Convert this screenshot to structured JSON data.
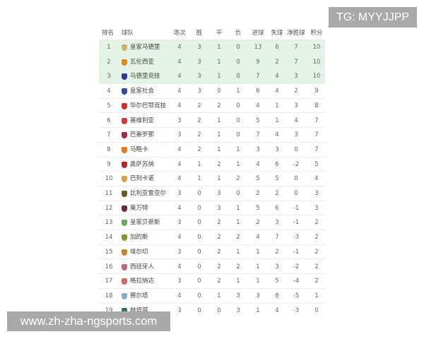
{
  "watermarks": {
    "top": "TG: MYYJJPP",
    "bottom": "www.zh-zha-ngsports.com"
  },
  "table": {
    "headers": [
      "排名",
      "球队",
      "场次",
      "胜",
      "平",
      "负",
      "进球",
      "失球",
      "净胜球",
      "积分"
    ],
    "highlight_color": "#e3f4e6",
    "rows": [
      {
        "rank": "1",
        "team": "皇家马德里",
        "played": "4",
        "w": "3",
        "d": "1",
        "l": "0",
        "gf": "13",
        "ga": "6",
        "gd": "7",
        "pts": "10",
        "logo_color": "#c9b56a"
      },
      {
        "rank": "2",
        "team": "瓦伦西亚",
        "played": "4",
        "w": "3",
        "d": "1",
        "l": "0",
        "gf": "9",
        "ga": "2",
        "gd": "7",
        "pts": "10",
        "logo_color": "#e08a1e"
      },
      {
        "rank": "3",
        "team": "马德里竞技",
        "played": "4",
        "w": "3",
        "d": "1",
        "l": "0",
        "gf": "7",
        "ga": "4",
        "gd": "3",
        "pts": "10",
        "logo_color": "#2b3a8c"
      },
      {
        "rank": "4",
        "team": "皇家社会",
        "played": "4",
        "w": "3",
        "d": "0",
        "l": "1",
        "gf": "6",
        "ga": "4",
        "gd": "2",
        "pts": "9",
        "logo_color": "#2d4f9c"
      },
      {
        "rank": "5",
        "team": "毕尔巴鄂竞技",
        "played": "4",
        "w": "2",
        "d": "2",
        "l": "0",
        "gf": "4",
        "ga": "1",
        "gd": "3",
        "pts": "8",
        "logo_color": "#c8322f"
      },
      {
        "rank": "6",
        "team": "塞维利亚",
        "played": "3",
        "w": "2",
        "d": "1",
        "l": "0",
        "gf": "5",
        "ga": "1",
        "gd": "4",
        "pts": "7",
        "logo_color": "#d33a3a"
      },
      {
        "rank": "7",
        "team": "巴塞罗那",
        "played": "3",
        "w": "2",
        "d": "1",
        "l": "0",
        "gf": "7",
        "ga": "4",
        "gd": "3",
        "pts": "7",
        "logo_color": "#a4283c"
      },
      {
        "rank": "8",
        "team": "马略卡",
        "played": "4",
        "w": "2",
        "d": "1",
        "l": "1",
        "gf": "3",
        "ga": "3",
        "gd": "0",
        "pts": "7",
        "logo_color": "#e07a1a"
      },
      {
        "rank": "9",
        "team": "奥萨苏纳",
        "played": "4",
        "w": "1",
        "d": "2",
        "l": "1",
        "gf": "4",
        "ga": "6",
        "gd": "-2",
        "pts": "5",
        "logo_color": "#b02a2a"
      },
      {
        "rank": "10",
        "team": "巴列卡诺",
        "played": "4",
        "w": "1",
        "d": "1",
        "l": "2",
        "gf": "5",
        "ga": "5",
        "gd": "0",
        "pts": "4",
        "logo_color": "#d9a24a"
      },
      {
        "rank": "11",
        "team": "比利亚雷亚尔",
        "played": "3",
        "w": "0",
        "d": "3",
        "l": "0",
        "gf": "2",
        "ga": "2",
        "gd": "0",
        "pts": "3",
        "logo_color": "#6a5a20"
      },
      {
        "rank": "12",
        "team": "莱万特",
        "played": "4",
        "w": "0",
        "d": "3",
        "l": "1",
        "gf": "5",
        "ga": "6",
        "gd": "-1",
        "pts": "3",
        "logo_color": "#6a2a3a"
      },
      {
        "rank": "13",
        "team": "皇家贝蒂斯",
        "played": "3",
        "w": "0",
        "d": "2",
        "l": "1",
        "gf": "2",
        "ga": "3",
        "gd": "-1",
        "pts": "2",
        "logo_color": "#6aa860"
      },
      {
        "rank": "14",
        "team": "加的斯",
        "played": "4",
        "w": "0",
        "d": "2",
        "l": "2",
        "gf": "4",
        "ga": "7",
        "gd": "-3",
        "pts": "2",
        "logo_color": "#7a9a3a"
      },
      {
        "rank": "15",
        "team": "埃尔切",
        "played": "3",
        "w": "0",
        "d": "2",
        "l": "1",
        "gf": "1",
        "ga": "2",
        "gd": "-1",
        "pts": "2",
        "logo_color": "#c8862a"
      },
      {
        "rank": "16",
        "team": "西班牙人",
        "played": "4",
        "w": "0",
        "d": "2",
        "l": "2",
        "gf": "1",
        "ga": "3",
        "gd": "-2",
        "pts": "2",
        "logo_color": "#c06a7a"
      },
      {
        "rank": "17",
        "team": "格拉纳达",
        "played": "3",
        "w": "0",
        "d": "2",
        "l": "1",
        "gf": "1",
        "ga": "5",
        "gd": "-4",
        "pts": "2",
        "logo_color": "#d26a6a"
      },
      {
        "rank": "18",
        "team": "赛尔塔",
        "played": "4",
        "w": "0",
        "d": "1",
        "l": "3",
        "gf": "3",
        "ga": "8",
        "gd": "-5",
        "pts": "1",
        "logo_color": "#8ab0d0"
      },
      {
        "rank": "19",
        "team": "赫塔菲",
        "played": "3",
        "w": "0",
        "d": "0",
        "l": "3",
        "gf": "1",
        "ga": "4",
        "gd": "-3",
        "pts": "0",
        "logo_color": "#3a6a7a"
      }
    ]
  }
}
